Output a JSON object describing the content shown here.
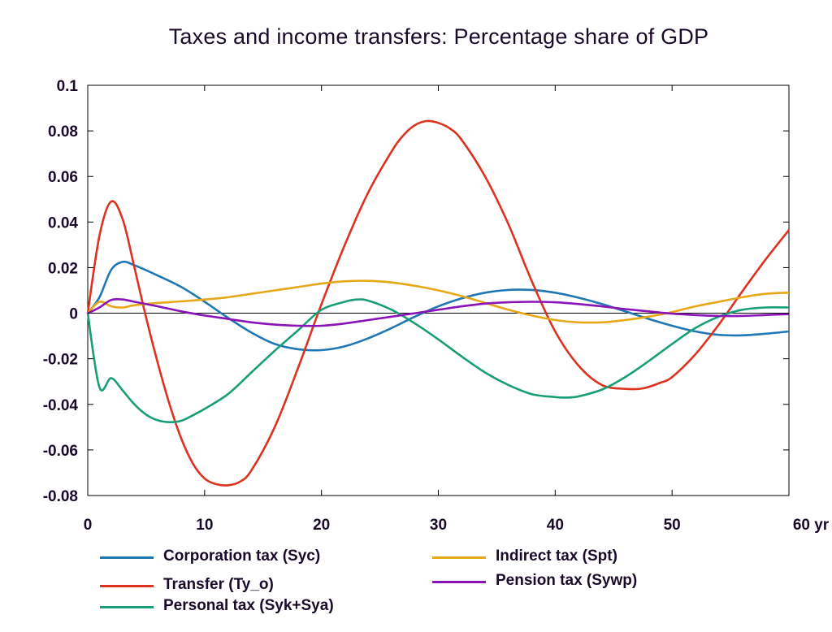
{
  "chart_data": {
    "type": "line",
    "title": "Taxes and income transfers: Percentage share of GDP",
    "xlabel": "",
    "ylabel": "",
    "x_unit_label": "yr",
    "xlim": [
      0,
      60
    ],
    "ylim": [
      -0.08,
      0.1
    ],
    "x_ticks": [
      0,
      10,
      20,
      30,
      40,
      50,
      60
    ],
    "x_tick_labels": [
      "0",
      "10",
      "20",
      "30",
      "40",
      "50",
      "60 yr"
    ],
    "y_ticks": [
      -0.08,
      -0.06,
      -0.04,
      -0.02,
      0,
      0.02,
      0.04,
      0.06,
      0.08,
      0.1
    ],
    "y_tick_labels": [
      "-0.08",
      "-0.06",
      "-0.04",
      "-0.02",
      "0",
      "0.02",
      "0.04",
      "0.06",
      "0.08",
      "0.1"
    ],
    "grid": false,
    "legend_position": "bottom",
    "series": [
      {
        "name": "Corporation tax (Syc)",
        "color": "#1f77b4",
        "x": [
          0,
          1,
          2,
          3,
          4,
          6,
          8,
          10,
          12,
          14,
          16,
          18,
          20,
          22,
          24,
          26,
          28,
          30,
          32,
          34,
          36,
          38,
          40,
          42,
          44,
          46,
          48,
          50,
          52,
          54,
          56,
          58,
          60
        ],
        "y": [
          0,
          0.007,
          0.019,
          0.0225,
          0.021,
          0.0165,
          0.0115,
          0.005,
          -0.002,
          -0.0085,
          -0.0135,
          -0.0158,
          -0.0162,
          -0.0145,
          -0.011,
          -0.0065,
          -0.0015,
          0.003,
          0.0065,
          0.009,
          0.0102,
          0.0102,
          0.009,
          0.0068,
          0.004,
          0.0008,
          -0.0025,
          -0.0055,
          -0.008,
          -0.0095,
          -0.0097,
          -0.009,
          -0.008
        ]
      },
      {
        "name": "Transfer (Ty_o)",
        "color": "#dc3220",
        "x": [
          0,
          1,
          2,
          3,
          4,
          5,
          6,
          7,
          8,
          9,
          10,
          11,
          12,
          13,
          14,
          16,
          18,
          20,
          22,
          24,
          26,
          27,
          28,
          29,
          30,
          31,
          32,
          34,
          36,
          38,
          40,
          42,
          44,
          46,
          47.5,
          49,
          50,
          52,
          54,
          56,
          58,
          60
        ],
        "y": [
          0,
          0.034,
          0.049,
          0.041,
          0.02,
          -0.002,
          -0.022,
          -0.04,
          -0.055,
          -0.066,
          -0.0725,
          -0.075,
          -0.0755,
          -0.074,
          -0.069,
          -0.05,
          -0.024,
          0.004,
          0.03,
          0.053,
          0.071,
          0.078,
          0.0825,
          0.0843,
          0.0835,
          0.081,
          0.076,
          0.06,
          0.039,
          0.014,
          -0.008,
          -0.023,
          -0.0315,
          -0.0332,
          -0.033,
          -0.0305,
          -0.028,
          -0.018,
          -0.005,
          0.0095,
          0.0235,
          0.0365
        ]
      },
      {
        "name": "Personal tax (Syk+Sya)",
        "color": "#1a9e77",
        "x": [
          0,
          1,
          2,
          3,
          4,
          5,
          6,
          7,
          8,
          9,
          10,
          12,
          14,
          16,
          18,
          20,
          22,
          23,
          24,
          26,
          28,
          30,
          32,
          34,
          36,
          38,
          40,
          41,
          42,
          44,
          46,
          48,
          50,
          52,
          54,
          56,
          58,
          60
        ],
        "y": [
          0,
          -0.0325,
          -0.0285,
          -0.034,
          -0.04,
          -0.0445,
          -0.047,
          -0.0478,
          -0.0472,
          -0.0448,
          -0.042,
          -0.0355,
          -0.026,
          -0.0165,
          -0.0075,
          0.0015,
          0.005,
          0.006,
          0.0055,
          0.0015,
          -0.0045,
          -0.0115,
          -0.019,
          -0.026,
          -0.0315,
          -0.0355,
          -0.0368,
          -0.037,
          -0.0365,
          -0.0335,
          -0.028,
          -0.021,
          -0.0135,
          -0.0065,
          -0.0015,
          0.0015,
          0.0025,
          0.0025
        ]
      },
      {
        "name": "Indirect tax (Spt)",
        "color": "#e6a817",
        "x": [
          0,
          1,
          2,
          3,
          4,
          6,
          8,
          10,
          12,
          14,
          16,
          18,
          20,
          22,
          24,
          26,
          28,
          30,
          32,
          34,
          36,
          38,
          40,
          42,
          44,
          46,
          48,
          50,
          52,
          54,
          56,
          58,
          60
        ],
        "y": [
          0,
          0.005,
          0.003,
          0.0025,
          0.0035,
          0.0045,
          0.0052,
          0.006,
          0.007,
          0.0085,
          0.01,
          0.0115,
          0.013,
          0.014,
          0.0142,
          0.0135,
          0.012,
          0.01,
          0.0075,
          0.0045,
          0.0015,
          -0.001,
          -0.003,
          -0.004,
          -0.004,
          -0.003,
          -0.0015,
          0.0005,
          0.003,
          0.005,
          0.007,
          0.0085,
          0.009
        ]
      },
      {
        "name": "Pension tax (Sywp)",
        "color": "#8b14b8",
        "x": [
          0,
          1,
          2,
          3,
          4,
          6,
          8,
          10,
          12,
          14,
          16,
          18,
          20,
          22,
          24,
          26,
          28,
          30,
          32,
          34,
          36,
          38,
          40,
          42,
          44,
          46,
          48,
          50,
          52,
          54,
          56,
          58,
          60
        ],
        "y": [
          0,
          0.0025,
          0.0058,
          0.006,
          0.005,
          0.003,
          0.0008,
          -0.001,
          -0.0025,
          -0.004,
          -0.005,
          -0.0055,
          -0.0055,
          -0.0045,
          -0.003,
          -0.0015,
          0,
          0.0015,
          0.003,
          0.0042,
          0.0048,
          0.005,
          0.0048,
          0.004,
          0.003,
          0.0018,
          0.0008,
          -0.0002,
          -0.0008,
          -0.0012,
          -0.0012,
          -0.0008,
          -0.0004
        ]
      }
    ]
  }
}
